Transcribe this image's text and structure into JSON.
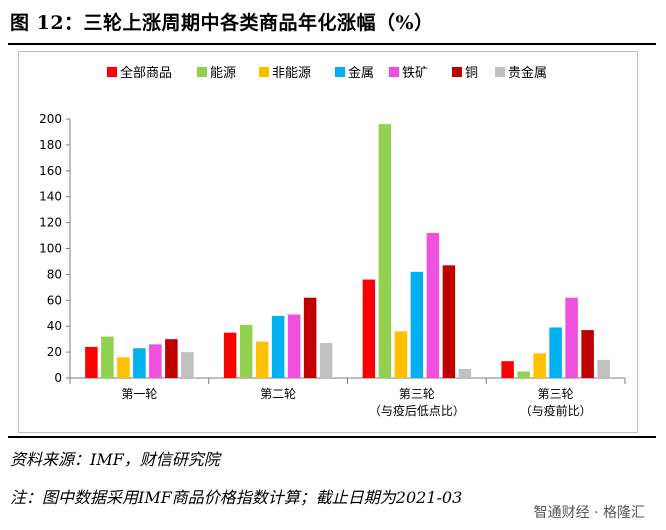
{
  "header": {
    "title": "图 12：三轮上涨周期中各类商品年化涨幅（%）"
  },
  "footer": {
    "source": "资料来源：IMF，财信研究院",
    "note": "注：图中数据采用IMF商品价格指数计算；截止日期为2021-03",
    "watermark": "智通财经 · 格隆汇"
  },
  "chart_data": {
    "type": "bar",
    "title": "",
    "xlabel": "",
    "ylabel": "",
    "ylim": [
      0,
      200
    ],
    "yticks": [
      0,
      20,
      40,
      60,
      80,
      100,
      120,
      140,
      160,
      180,
      200
    ],
    "grid": false,
    "legend_position": "top",
    "categories": [
      "第一轮",
      "第二轮",
      "第三轮\n（与疫后低点比）",
      "第三轮\n（与疫前比）"
    ],
    "series": [
      {
        "name": "全部商品",
        "color": "#ff0000",
        "values": [
          24,
          35,
          76,
          13
        ]
      },
      {
        "name": "能源",
        "color": "#92d050",
        "values": [
          32,
          41,
          196,
          5
        ]
      },
      {
        "name": "非能源",
        "color": "#ffc000",
        "values": [
          16,
          28,
          36,
          19
        ]
      },
      {
        "name": "金属",
        "color": "#00b0f0",
        "values": [
          23,
          48,
          82,
          39
        ]
      },
      {
        "name": "铁矿",
        "color": "#f050e0",
        "values": [
          26,
          49,
          112,
          62
        ]
      },
      {
        "name": "铜",
        "color": "#c00000",
        "values": [
          30,
          62,
          87,
          37
        ]
      },
      {
        "name": "贵金属",
        "color": "#c0c0c0",
        "values": [
          20,
          27,
          7,
          14
        ]
      }
    ]
  }
}
